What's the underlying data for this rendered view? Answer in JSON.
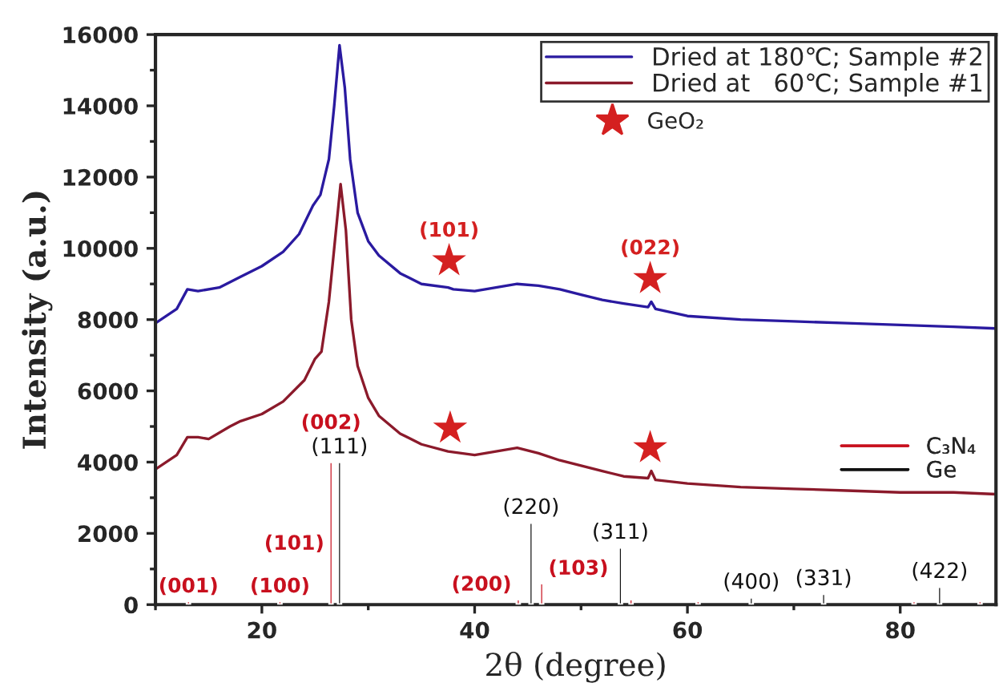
{
  "chart_data": {
    "type": "line",
    "xlabel": "2θ (degree)",
    "ylabel": "Intensity (a.u.)",
    "xlim": [
      10,
      89
    ],
    "xticks": [
      20,
      40,
      60,
      80
    ],
    "ylim": [
      0,
      16000
    ],
    "yticks": [
      0,
      2000,
      4000,
      6000,
      8000,
      10000,
      12000,
      14000,
      16000
    ],
    "grid": false,
    "legend": "top right",
    "marker": "none",
    "line_style": "solid",
    "series": [
      {
        "name": "Dried at 180℃; Sample #2",
        "color": "#2a1aa0",
        "type": "line",
        "x": [
          10,
          12,
          13,
          14,
          16,
          18,
          20,
          22,
          23.5,
          24.8,
          25.5,
          26.3,
          26.8,
          27.3,
          27.8,
          28.3,
          29,
          30,
          31,
          33,
          35,
          37.5,
          38,
          40,
          42,
          44,
          46,
          48,
          50,
          52,
          54,
          56.3,
          56.6,
          57,
          60,
          65,
          70,
          75,
          80,
          85,
          89
        ],
        "values": [
          7900,
          8300,
          8850,
          8800,
          8900,
          9200,
          9500,
          9900,
          10400,
          11200,
          11500,
          12500,
          14000,
          15700,
          14500,
          12500,
          11000,
          10200,
          9800,
          9300,
          9000,
          8900,
          8850,
          8800,
          8900,
          9000,
          8950,
          8850,
          8700,
          8550,
          8450,
          8350,
          8500,
          8300,
          8100,
          8000,
          7950,
          7900,
          7850,
          7800,
          7750
        ]
      },
      {
        "name": "Dried at   60℃; Sample #1",
        "color": "#8b1a2b",
        "type": "line",
        "x": [
          10,
          12,
          13,
          14,
          15,
          17,
          18,
          20,
          22,
          24,
          25,
          25.6,
          26.3,
          26.8,
          27.4,
          27.9,
          28.4,
          29,
          30,
          31,
          33,
          35,
          37.5,
          40,
          42,
          44,
          46,
          48,
          50,
          52,
          54,
          56.3,
          56.6,
          57,
          60,
          65,
          70,
          75,
          80,
          85,
          89
        ],
        "values": [
          3800,
          4200,
          4700,
          4700,
          4650,
          5000,
          5150,
          5350,
          5700,
          6300,
          6900,
          7100,
          8500,
          10000,
          11800,
          10500,
          8000,
          6700,
          5800,
          5300,
          4800,
          4500,
          4300,
          4200,
          4300,
          4400,
          4250,
          4050,
          3900,
          3750,
          3600,
          3550,
          3750,
          3500,
          3400,
          3300,
          3250,
          3200,
          3150,
          3150,
          3100
        ]
      },
      {
        "name": "GeO₂",
        "color": "#d42020",
        "type": "scatter",
        "marker": "star",
        "x": [
          37.6,
          56.5,
          37.7,
          56.5
        ],
        "values": [
          9650,
          9150,
          4950,
          4400
        ]
      },
      {
        "name": "C₃N₄",
        "color": "#c8101e",
        "type": "bar",
        "x": [
          13.1,
          21.7,
          26.5,
          44.1,
          46.3,
          54.7,
          61,
          81.3,
          87.5
        ],
        "values": [
          100,
          100,
          4000,
          150,
          600,
          150,
          100,
          100,
          100
        ]
      },
      {
        "name": "Ge",
        "color": "#111111",
        "type": "bar",
        "x": [
          27.3,
          45.3,
          53.7,
          66,
          72.8,
          83.7
        ],
        "values": [
          4000,
          2300,
          1600,
          200,
          300,
          500
        ]
      }
    ],
    "annotations": [
      {
        "text": "(001)",
        "x": 13.1,
        "y": 100
      },
      {
        "text": "(100)",
        "x": 21.7,
        "y": 100
      },
      {
        "text": "(101)",
        "x": 26.5,
        "y": 1300
      },
      {
        "text": "(111)",
        "x": 27.3,
        "y": 4000
      },
      {
        "text": "(002)",
        "x": 26.5,
        "y": 4000
      },
      {
        "text": "(200)",
        "x": 44.1,
        "y": 150
      },
      {
        "text": "(103)",
        "x": 46.3,
        "y": 600
      },
      {
        "text": "(220)",
        "x": 45.3,
        "y": 2300
      },
      {
        "text": "(311)",
        "x": 53.7,
        "y": 1600
      },
      {
        "text": "(400)",
        "x": 66,
        "y": 200
      },
      {
        "text": "(331)",
        "x": 72.8,
        "y": 300
      },
      {
        "text": "(422)",
        "x": 83.7,
        "y": 500
      },
      {
        "text": "(101)",
        "x": 37.6,
        "y": 9650
      },
      {
        "text": "(022)",
        "x": 56.5,
        "y": 9150
      }
    ]
  }
}
